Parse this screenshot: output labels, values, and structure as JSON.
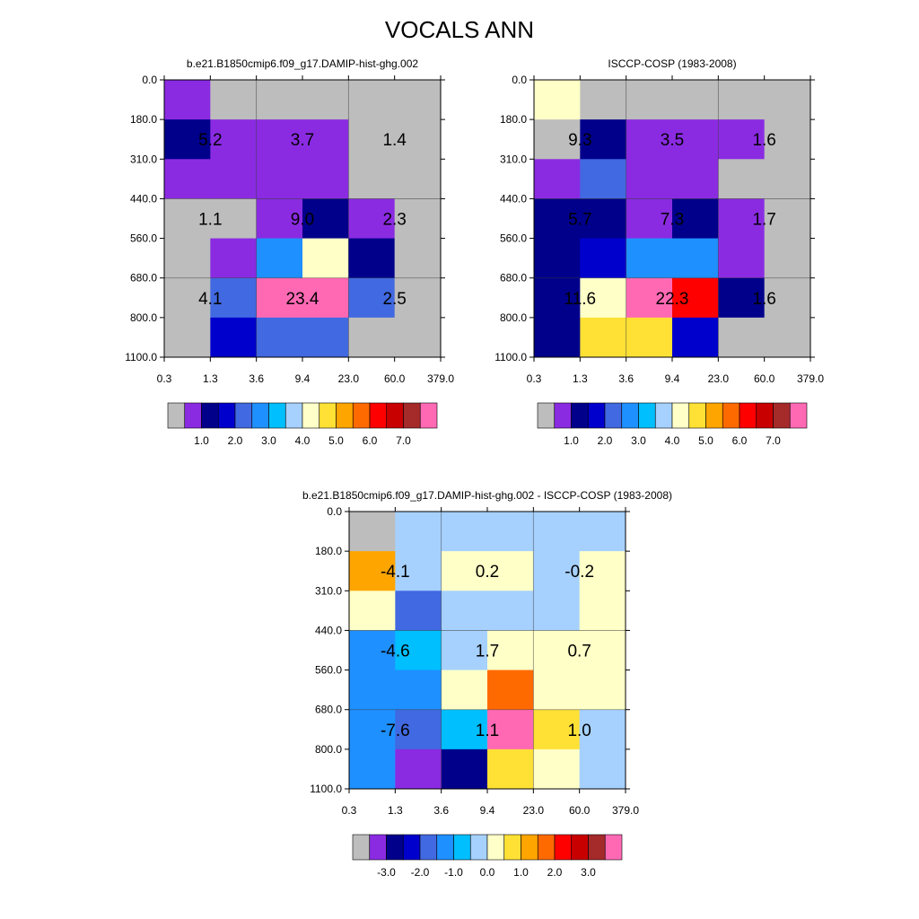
{
  "figure": {
    "title": "VOCALS ANN"
  },
  "colors": {
    "abs_scale": [
      "#bdbdbd",
      "#8a2be2",
      "#00008b",
      "#0000cd",
      "#4169e1",
      "#1e90ff",
      "#00bfff",
      "#a6d1ff",
      "#ffffc8",
      "#ffe135",
      "#ffa500",
      "#ff6a00",
      "#ff0000",
      "#c80000",
      "#a52a2a",
      "#ff69b4"
    ],
    "diff_scale": [
      "#bdbdbd",
      "#8a2be2",
      "#00008b",
      "#0000cd",
      "#4169e1",
      "#1e90ff",
      "#00bfff",
      "#a6d1ff",
      "#ffffc8",
      "#ffe135",
      "#ffa500",
      "#ff6a00",
      "#ff0000",
      "#c80000",
      "#a52a2a",
      "#ff69b4"
    ]
  },
  "chart_data": [
    {
      "type": "heatmap",
      "title": "b.e21.B1850cmip6.f09_g17.DAMIP-hist-ghg.002",
      "x_tick_labels": [
        "0.3",
        "1.3",
        "3.6",
        "9.4",
        "23.0",
        "60.0",
        "379.0"
      ],
      "y_tick_labels": [
        "0.0",
        "180.0",
        "310.0",
        "440.0",
        "560.0",
        "680.0",
        "800.0",
        "1100.0"
      ],
      "cell_color_index": [
        [
          1,
          0,
          0,
          0,
          0,
          0
        ],
        [
          2,
          1,
          1,
          1,
          0,
          0
        ],
        [
          1,
          1,
          1,
          1,
          0,
          0
        ],
        [
          0,
          0,
          1,
          2,
          1,
          0
        ],
        [
          0,
          1,
          5,
          8,
          2,
          0
        ],
        [
          0,
          4,
          15,
          15,
          4,
          0
        ],
        [
          0,
          3,
          4,
          4,
          0,
          0
        ]
      ],
      "annotations": [
        {
          "row": 1,
          "col": 0,
          "text": "5.2"
        },
        {
          "row": 1,
          "col": 1,
          "text": "3.7"
        },
        {
          "row": 1,
          "col": 2,
          "text": "1.4"
        },
        {
          "row": 2,
          "col": 0,
          "text": "1.1"
        },
        {
          "row": 2,
          "col": 1,
          "text": "9.0"
        },
        {
          "row": 2,
          "col": 2,
          "text": "2.3"
        },
        {
          "row": 3,
          "col": 0,
          "text": "4.1"
        },
        {
          "row": 3,
          "col": 1,
          "text": "23.4"
        },
        {
          "row": 3,
          "col": 2,
          "text": "2.5"
        }
      ],
      "colorbar": {
        "scale": "abs",
        "labels": [
          "1.0",
          "2.0",
          "3.0",
          "4.0",
          "5.0",
          "6.0",
          "7.0"
        ]
      }
    },
    {
      "type": "heatmap",
      "title": "ISCCP-COSP (1983-2008)",
      "x_tick_labels": [
        "0.3",
        "1.3",
        "3.6",
        "9.4",
        "23.0",
        "60.0",
        "379.0"
      ],
      "y_tick_labels": [
        "0.0",
        "180.0",
        "310.0",
        "440.0",
        "560.0",
        "680.0",
        "800.0",
        "1100.0"
      ],
      "cell_color_index": [
        [
          8,
          0,
          0,
          0,
          0,
          0
        ],
        [
          0,
          2,
          1,
          1,
          1,
          0
        ],
        [
          1,
          4,
          1,
          1,
          0,
          0
        ],
        [
          2,
          2,
          1,
          2,
          1,
          0
        ],
        [
          2,
          3,
          5,
          5,
          1,
          0
        ],
        [
          2,
          8,
          15,
          12,
          2,
          0
        ],
        [
          2,
          9,
          9,
          3,
          0,
          0
        ]
      ],
      "annotations": [
        {
          "row": 1,
          "col": 0,
          "text": "9.3"
        },
        {
          "row": 1,
          "col": 1,
          "text": "3.5"
        },
        {
          "row": 1,
          "col": 2,
          "text": "1.6"
        },
        {
          "row": 2,
          "col": 0,
          "text": "5.7"
        },
        {
          "row": 2,
          "col": 1,
          "text": "7.3"
        },
        {
          "row": 2,
          "col": 2,
          "text": "1.7"
        },
        {
          "row": 3,
          "col": 0,
          "text": "11.6"
        },
        {
          "row": 3,
          "col": 1,
          "text": "22.3"
        },
        {
          "row": 3,
          "col": 2,
          "text": "1.6"
        }
      ],
      "colorbar": {
        "scale": "abs",
        "labels": [
          "1.0",
          "2.0",
          "3.0",
          "4.0",
          "5.0",
          "6.0",
          "7.0"
        ]
      }
    },
    {
      "type": "heatmap",
      "title": "b.e21.B1850cmip6.f09_g17.DAMIP-hist-ghg.002 - ISCCP-COSP (1983-2008)",
      "x_tick_labels": [
        "0.3",
        "1.3",
        "3.6",
        "9.4",
        "23.0",
        "60.0",
        "379.0"
      ],
      "y_tick_labels": [
        "0.0",
        "180.0",
        "310.0",
        "440.0",
        "560.0",
        "680.0",
        "800.0",
        "1100.0"
      ],
      "cell_color_index": [
        [
          0,
          7,
          7,
          7,
          7,
          7
        ],
        [
          10,
          7,
          8,
          8,
          7,
          8
        ],
        [
          8,
          4,
          7,
          7,
          7,
          8
        ],
        [
          5,
          6,
          7,
          8,
          8,
          8
        ],
        [
          5,
          5,
          8,
          11,
          8,
          8
        ],
        [
          5,
          4,
          6,
          15,
          9,
          7
        ],
        [
          5,
          1,
          2,
          9,
          8,
          7
        ]
      ],
      "annotations": [
        {
          "row": 1,
          "col": 0,
          "text": "-4.1"
        },
        {
          "row": 1,
          "col": 1,
          "text": "0.2"
        },
        {
          "row": 1,
          "col": 2,
          "text": "-0.2"
        },
        {
          "row": 2,
          "col": 0,
          "text": "-4.6"
        },
        {
          "row": 2,
          "col": 1,
          "text": "1.7"
        },
        {
          "row": 2,
          "col": 2,
          "text": "0.7"
        },
        {
          "row": 3,
          "col": 0,
          "text": "-7.6"
        },
        {
          "row": 3,
          "col": 1,
          "text": "1.1"
        },
        {
          "row": 3,
          "col": 2,
          "text": "1.0"
        }
      ],
      "colorbar": {
        "scale": "diff",
        "labels": [
          "-3.0",
          "-2.0",
          "-1.0",
          "0.0",
          "1.0",
          "2.0",
          "3.0"
        ]
      }
    }
  ]
}
